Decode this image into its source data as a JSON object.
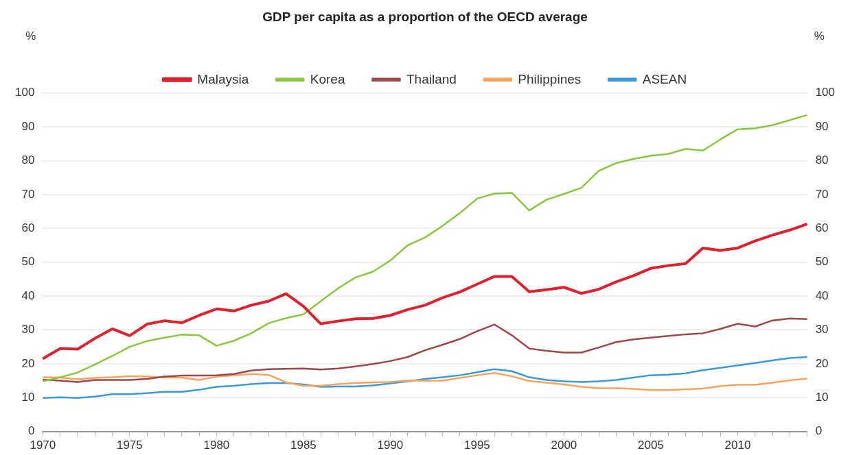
{
  "chart_data": {
    "type": "line",
    "title": "GDP per capita as a proportion of the OECD average",
    "ylabel": "%",
    "y2label": "%",
    "categories": [
      "1970",
      null,
      null,
      null,
      null,
      "1975",
      null,
      null,
      null,
      null,
      "1980",
      null,
      null,
      null,
      null,
      "1985",
      null,
      null,
      null,
      null,
      "1990",
      null,
      null,
      null,
      null,
      "1995",
      null,
      null,
      null,
      null,
      "2000",
      null,
      null,
      null,
      null,
      "2005",
      null,
      null,
      null,
      null,
      "2010",
      null,
      null,
      null,
      null
    ],
    "ylim": [
      0,
      100
    ],
    "yticks": [
      0,
      10,
      20,
      30,
      40,
      50,
      60,
      70,
      80,
      90,
      100
    ],
    "y2lim": [
      0,
      100
    ],
    "y2ticks": [
      0,
      10,
      20,
      30,
      40,
      50,
      60,
      70,
      80,
      90,
      100
    ],
    "grid": "y",
    "legend": "top",
    "marker": "none",
    "line_style": "solid",
    "series": [
      {
        "name": "Malaysia",
        "color": "#e0212d",
        "values": [
          21.5,
          24.5,
          24.3,
          27.5,
          30.3,
          28.3,
          31.7,
          32.7,
          32.1,
          34.3,
          36.2,
          35.6,
          37.3,
          38.5,
          40.7,
          37,
          31.8,
          32.6,
          33.3,
          33.4,
          34.3,
          36,
          37.3,
          39.5,
          41.2,
          43.5,
          45.8,
          45.8,
          41.3,
          41.9,
          42.6,
          40.8,
          42,
          44.2,
          46,
          48.2,
          49,
          49.6,
          54.2,
          53.5,
          54.2,
          56.3,
          58,
          59.5,
          61.3
        ]
      },
      {
        "name": "Korea",
        "color": "#8cc63f",
        "values": [
          14.8,
          16,
          17.4,
          19.8,
          22.3,
          25,
          26.7,
          27.7,
          28.6,
          28.4,
          25.3,
          26.8,
          29,
          32,
          33.5,
          34.6,
          38.5,
          42.3,
          45.5,
          47.2,
          50.5,
          55,
          57.3,
          60.7,
          64.5,
          68.8,
          70.3,
          70.5,
          65.3,
          68.5,
          70.2,
          72,
          77,
          79.3,
          80.5,
          81.5,
          82,
          83.5,
          83,
          86.3,
          89.3,
          89.6,
          90.5,
          92,
          93.5
        ]
      },
      {
        "name": "Thailand",
        "color": "#a0464b",
        "values": [
          15.3,
          15,
          14.6,
          15.2,
          15.2,
          15.2,
          15.5,
          16.2,
          16.5,
          16.5,
          16.6,
          17,
          18,
          18.4,
          18.5,
          18.6,
          18.3,
          18.6,
          19.2,
          19.9,
          20.8,
          22,
          24,
          25.6,
          27.3,
          29.6,
          31.6,
          28.4,
          24.5,
          23.8,
          23.3,
          23.3,
          24.8,
          26.4,
          27.2,
          27.7,
          28.2,
          28.7,
          29,
          30.3,
          31.8,
          31,
          32.8,
          33.4,
          33.2
        ]
      },
      {
        "name": "Philippines",
        "color": "#f7a35c",
        "values": [
          16,
          15.9,
          15.4,
          15.8,
          16,
          16.3,
          16.2,
          15.9,
          15.9,
          15.2,
          16.2,
          16.6,
          17,
          16.7,
          14.5,
          13.5,
          13.5,
          14,
          14.3,
          14.5,
          14.6,
          15,
          15,
          15,
          15.8,
          16.6,
          17.3,
          16.3,
          14.9,
          14.4,
          13.9,
          13.2,
          12.8,
          12.8,
          12.6,
          12.2,
          12.2,
          12.4,
          12.7,
          13.4,
          13.8,
          13.8,
          14.4,
          15.1,
          15.6
        ]
      },
      {
        "name": "ASEAN",
        "color": "#3a9ad9",
        "values": [
          9.9,
          10.1,
          9.9,
          10.3,
          11,
          11,
          11.3,
          11.7,
          11.7,
          12.3,
          13.2,
          13.5,
          14,
          14.3,
          14.3,
          13.9,
          13.2,
          13.3,
          13.3,
          13.6,
          14.2,
          14.8,
          15.5,
          16,
          16.6,
          17.5,
          18.4,
          17.8,
          16,
          15.2,
          14.8,
          14.6,
          14.8,
          15.2,
          15.9,
          16.6,
          16.8,
          17.2,
          18.1,
          18.8,
          19.5,
          20.2,
          21,
          21.7,
          22
        ]
      }
    ]
  }
}
